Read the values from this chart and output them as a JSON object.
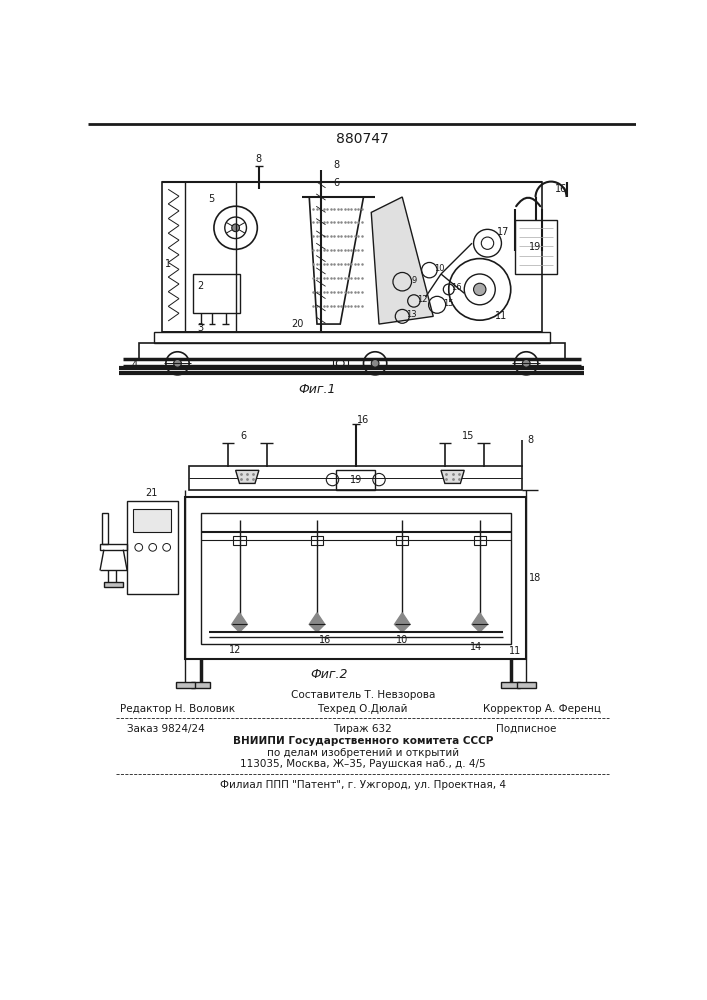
{
  "patent_number": "880747",
  "fig1_caption": "Фиг.1",
  "fig2_caption": "Фиг.2",
  "footer_editor": "Редактор Н. Воловик",
  "footer_comp_top": "Составитель Т. Невзорова",
  "footer_tech": "Техред О.Дюлай",
  "footer_corr": "Корректор А. Ференц",
  "footer_order": "Заказ 9824/24",
  "footer_tirazh": "Тираж 632",
  "footer_podp": "Подписное",
  "footer_vnipi": "ВНИИПИ Государственного комитета СССР",
  "footer_po": "по делам изобретений и открытий",
  "footer_addr": "113035, Москва, Ж–35, Раушская наб., д. 4/5",
  "footer_filial": "Филиал ППП \"Патент\", г. Ужгород, ул. Проектная, 4",
  "bg_color": "#ffffff"
}
